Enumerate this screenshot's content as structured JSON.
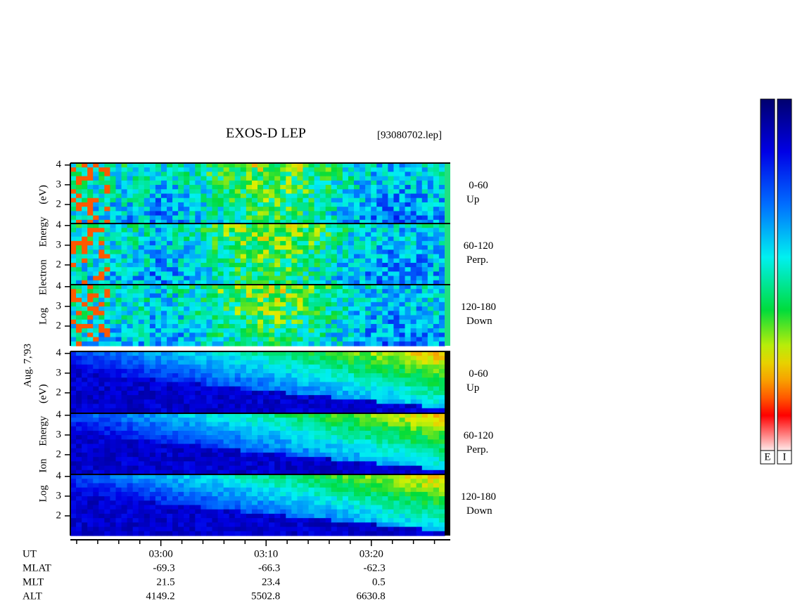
{
  "chart_data": {
    "type": "spectrogram",
    "title": "EXOS-D LEP",
    "file": "[93080702.lep]",
    "date": "Aug. 7,'93",
    "groups": [
      {
        "label": "Log Electron Energy (eV)",
        "panels": [
          {
            "angle": "0-60",
            "direction": "Up"
          },
          {
            "angle": "60-120",
            "direction": "Perp."
          },
          {
            "angle": "120-180",
            "direction": "Down"
          }
        ]
      },
      {
        "label": "Log Ion Energy (eV)",
        "panels": [
          {
            "angle": "0-60",
            "direction": "Up"
          },
          {
            "angle": "60-120",
            "direction": "Perp."
          },
          {
            "angle": "120-180",
            "direction": "Down"
          }
        ]
      }
    ],
    "ylim": [
      1,
      4.1
    ],
    "yticks": [
      2,
      3,
      4
    ],
    "xlim": [
      171.4,
      207.5
    ],
    "xticks": [
      {
        "value": 180,
        "label": "03:00"
      },
      {
        "value": 190,
        "label": "03:10"
      },
      {
        "value": 200,
        "label": "03:20"
      }
    ],
    "xminorticks": [
      172,
      174,
      176,
      178,
      182,
      184,
      186,
      188,
      192,
      194,
      196,
      198,
      202,
      204,
      206
    ],
    "time_label": "UT",
    "orbit": [
      {
        "label": "MLAT",
        "values": [
          -69.3,
          -66.3,
          -62.3
        ]
      },
      {
        "label": "MLT",
        "values": [
          21.5,
          23.4,
          0.5
        ]
      },
      {
        "label": "ALT",
        "values": [
          4149.2,
          5502.8,
          6630.8
        ]
      }
    ],
    "colorbars": [
      "E",
      "I"
    ]
  }
}
